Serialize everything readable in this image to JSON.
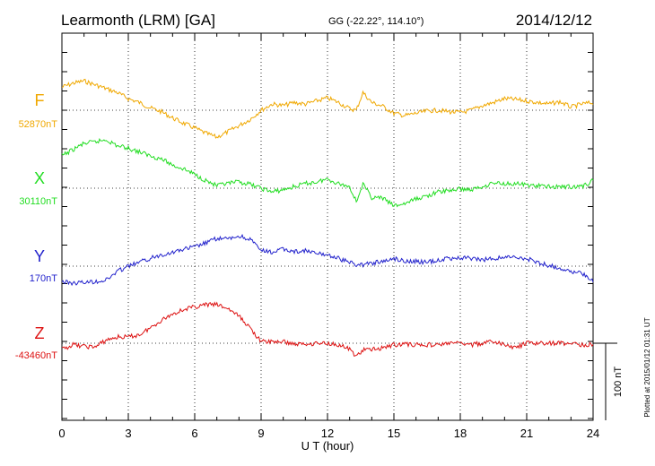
{
  "header": {
    "station": "Learmonth (LRM)  [GA]",
    "coords": "GG (-22.22°, 114.10°)",
    "date": "2014/12/12"
  },
  "footer": {
    "plotted": "Plotted at 2015/01/12 01:31  UT"
  },
  "chart_data": {
    "type": "line",
    "title": "Learmonth (LRM)  [GA]",
    "xlabel": "U T (hour)",
    "ylabel": "",
    "xlim": [
      0,
      24
    ],
    "xticks": [
      "0",
      "3",
      "6",
      "9",
      "12",
      "15",
      "18",
      "21",
      "24"
    ],
    "grid": true,
    "scale_bar": {
      "label": "100 nT",
      "value_nT": 100
    },
    "series": [
      {
        "name": "F",
        "baseline_label": "52870nT",
        "color": "#f0a800",
        "x": [
          0,
          0.5,
          1,
          1.5,
          2,
          2.5,
          3,
          3.5,
          4,
          4.5,
          5,
          5.5,
          6,
          6.5,
          7,
          7.5,
          8,
          8.5,
          9,
          9.5,
          10,
          10.5,
          11,
          11.5,
          12,
          12.5,
          13,
          13.3,
          13.6,
          14,
          14.5,
          15,
          15.5,
          16,
          16.5,
          17,
          17.5,
          18,
          18.5,
          19,
          19.5,
          20,
          20.5,
          21,
          21.5,
          22,
          22.5,
          23,
          23.5,
          24
        ],
        "y": [
          52900,
          52905,
          52908,
          52903,
          52898,
          52893,
          52885,
          52880,
          52873,
          52868,
          52860,
          52853,
          52847,
          52840,
          52835,
          52842,
          52850,
          52858,
          52870,
          52878,
          52876,
          52880,
          52878,
          52882,
          52886,
          52880,
          52872,
          52870,
          52893,
          52880,
          52875,
          52866,
          52863,
          52866,
          52869,
          52870,
          52868,
          52867,
          52870,
          52876,
          52880,
          52885,
          52884,
          52882,
          52880,
          52878,
          52881,
          52874,
          52878,
          52880
        ]
      },
      {
        "name": "X",
        "baseline_label": "30110nT",
        "color": "#22dd22",
        "x": [
          0,
          0.5,
          1,
          1.5,
          2,
          2.5,
          3,
          3.5,
          4,
          4.5,
          5,
          5.5,
          6,
          6.5,
          7,
          7.5,
          8,
          8.5,
          9,
          9.5,
          10,
          10.5,
          11,
          11.5,
          12,
          12.5,
          13,
          13.3,
          13.6,
          14,
          14.5,
          15,
          15.5,
          16,
          16.5,
          17,
          17.5,
          18,
          18.5,
          19,
          19.5,
          20,
          20.5,
          21,
          21.5,
          22,
          22.5,
          23,
          23.5,
          24
        ],
        "y": [
          30152,
          30160,
          30168,
          30170,
          30173,
          30165,
          30162,
          30157,
          30152,
          30148,
          30140,
          30135,
          30128,
          30120,
          30113,
          30116,
          30118,
          30115,
          30110,
          30105,
          30108,
          30112,
          30116,
          30118,
          30122,
          30116,
          30112,
          30093,
          30115,
          30098,
          30097,
          30087,
          30090,
          30096,
          30100,
          30105,
          30107,
          30109,
          30108,
          30112,
          30117,
          30116,
          30116,
          30114,
          30113,
          30112,
          30112,
          30112,
          30112,
          30120
        ]
      },
      {
        "name": "Y",
        "baseline_label": "170nT",
        "color": "#2222cc",
        "x": [
          0,
          0.5,
          1,
          1.5,
          2,
          2.5,
          3,
          3.5,
          4,
          4.5,
          5,
          5.5,
          6,
          6.5,
          7,
          7.5,
          8,
          8.5,
          9,
          9.5,
          10,
          10.5,
          11,
          11.5,
          12,
          12.5,
          13,
          13.3,
          13.6,
          14,
          14.5,
          15,
          15.5,
          16,
          16.5,
          17,
          17.5,
          18,
          18.5,
          19,
          19.5,
          20,
          20.5,
          21,
          21.5,
          22,
          22.5,
          23,
          23.5,
          24
        ],
        "y": [
          150,
          148,
          149,
          150,
          152,
          163,
          170,
          175,
          180,
          185,
          188,
          192,
          195,
          200,
          206,
          205,
          209,
          205,
          190,
          188,
          192,
          189,
          190,
          186,
          185,
          180,
          175,
          172,
          172,
          174,
          176,
          180,
          177,
          176,
          175,
          178,
          180,
          181,
          180,
          178,
          180,
          182,
          181,
          180,
          175,
          171,
          168,
          163,
          160,
          152
        ]
      },
      {
        "name": "Z",
        "baseline_label": "-43460nT",
        "color": "#dd1111",
        "x": [
          0,
          0.5,
          1,
          1.5,
          2,
          2.5,
          3,
          3.5,
          4,
          4.5,
          5,
          5.5,
          6,
          6.5,
          7,
          7.5,
          8,
          8.5,
          9,
          9.5,
          10,
          10.5,
          11,
          11.5,
          12,
          12.5,
          13,
          13.3,
          13.6,
          14,
          14.5,
          15,
          15.5,
          16,
          16.5,
          17,
          17.5,
          18,
          18.5,
          19,
          19.5,
          20,
          20.5,
          21,
          21.5,
          22,
          22.5,
          23,
          23.5,
          24
        ],
        "y": [
          -43468,
          -43462,
          -43464,
          -43465,
          -43456,
          -43452,
          -43452,
          -43449,
          -43440,
          -43430,
          -43422,
          -43416,
          -43413,
          -43410,
          -43410,
          -43415,
          -43425,
          -43440,
          -43458,
          -43458,
          -43458,
          -43461,
          -43461,
          -43460,
          -43460,
          -43462,
          -43468,
          -43477,
          -43469,
          -43468,
          -43466,
          -43462,
          -43461,
          -43462,
          -43462,
          -43462,
          -43460,
          -43460,
          -43462,
          -43460,
          -43458,
          -43462,
          -43466,
          -43460,
          -43460,
          -43460,
          -43460,
          -43460,
          -43462,
          -43462
        ]
      }
    ]
  }
}
